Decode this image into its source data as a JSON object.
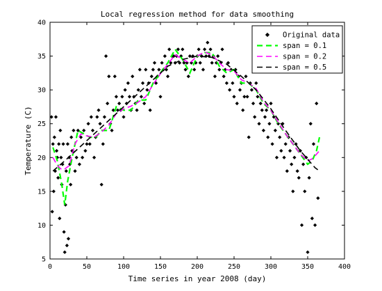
{
  "chart_data": {
    "type": "scatter",
    "title": "Local regression method for data smoothing",
    "xlabel": "Time series in year 2008 (day)",
    "ylabel": "Temperature (C)",
    "xlim": [
      0,
      400
    ],
    "ylim": [
      5,
      40
    ],
    "xticks": [
      "0",
      "50",
      "100",
      "150",
      "200",
      "250",
      "300",
      "350",
      "400"
    ],
    "yticks": [
      "5",
      "10",
      "15",
      "20",
      "25",
      "30",
      "35",
      "40"
    ],
    "grid": false,
    "legend_position": "top-right",
    "series": [
      {
        "name": "Original data",
        "kind": "markers",
        "marker": "diamond",
        "color": "#000000",
        "points": [
          [
            2,
            26
          ],
          [
            3,
            12
          ],
          [
            4,
            22
          ],
          [
            5,
            15
          ],
          [
            6,
            23
          ],
          [
            7,
            18
          ],
          [
            8,
            26
          ],
          [
            9,
            21
          ],
          [
            10,
            20
          ],
          [
            11,
            17
          ],
          [
            12,
            22
          ],
          [
            13,
            11
          ],
          [
            14,
            24
          ],
          [
            15,
            20
          ],
          [
            16,
            16
          ],
          [
            17,
            19
          ],
          [
            18,
            22
          ],
          [
            19,
            9
          ],
          [
            20,
            6
          ],
          [
            21,
            13
          ],
          [
            22,
            18
          ],
          [
            23,
            7
          ],
          [
            24,
            22
          ],
          [
            25,
            8
          ],
          [
            26,
            20
          ],
          [
            27,
            19
          ],
          [
            28,
            16
          ],
          [
            29,
            23
          ],
          [
            30,
            21
          ],
          [
            32,
            24
          ],
          [
            34,
            18
          ],
          [
            36,
            20
          ],
          [
            38,
            24
          ],
          [
            40,
            19
          ],
          [
            42,
            23
          ],
          [
            44,
            20
          ],
          [
            46,
            24
          ],
          [
            48,
            21
          ],
          [
            50,
            22
          ],
          [
            52,
            25
          ],
          [
            54,
            22
          ],
          [
            56,
            26
          ],
          [
            58,
            24
          ],
          [
            60,
            20
          ],
          [
            62,
            23
          ],
          [
            64,
            26
          ],
          [
            66,
            27
          ],
          [
            68,
            25
          ],
          [
            70,
            16
          ],
          [
            72,
            22
          ],
          [
            74,
            26
          ],
          [
            76,
            35
          ],
          [
            78,
            28
          ],
          [
            80,
            32
          ],
          [
            82,
            25
          ],
          [
            84,
            24
          ],
          [
            86,
            27
          ],
          [
            88,
            32
          ],
          [
            90,
            29
          ],
          [
            92,
            27
          ],
          [
            94,
            28
          ],
          [
            96,
            27
          ],
          [
            98,
            29
          ],
          [
            100,
            26
          ],
          [
            102,
            30
          ],
          [
            104,
            28
          ],
          [
            106,
            31
          ],
          [
            108,
            29
          ],
          [
            110,
            27
          ],
          [
            112,
            32
          ],
          [
            114,
            29
          ],
          [
            116,
            28
          ],
          [
            118,
            27
          ],
          [
            120,
            30
          ],
          [
            122,
            33
          ],
          [
            124,
            29
          ],
          [
            126,
            31
          ],
          [
            128,
            28
          ],
          [
            130,
            33
          ],
          [
            132,
            30
          ],
          [
            134,
            31
          ],
          [
            136,
            27
          ],
          [
            138,
            32
          ],
          [
            140,
            33
          ],
          [
            142,
            34
          ],
          [
            144,
            31
          ],
          [
            146,
            32
          ],
          [
            148,
            33
          ],
          [
            150,
            29
          ],
          [
            152,
            34
          ],
          [
            154,
            33
          ],
          [
            156,
            35
          ],
          [
            158,
            33
          ],
          [
            160,
            32
          ],
          [
            162,
            36
          ],
          [
            164,
            34
          ],
          [
            166,
            35
          ],
          [
            168,
            35
          ],
          [
            170,
            34
          ],
          [
            172,
            35
          ],
          [
            174,
            36
          ],
          [
            176,
            34
          ],
          [
            178,
            35
          ],
          [
            180,
            36
          ],
          [
            182,
            34
          ],
          [
            184,
            33
          ],
          [
            186,
            34
          ],
          [
            188,
            32
          ],
          [
            190,
            35
          ],
          [
            192,
            34
          ],
          [
            194,
            35
          ],
          [
            196,
            33
          ],
          [
            198,
            34
          ],
          [
            200,
            35
          ],
          [
            202,
            36
          ],
          [
            204,
            34
          ],
          [
            206,
            35
          ],
          [
            208,
            33
          ],
          [
            210,
            36
          ],
          [
            212,
            35
          ],
          [
            214,
            37
          ],
          [
            216,
            35
          ],
          [
            218,
            36
          ],
          [
            220,
            34
          ],
          [
            222,
            35
          ],
          [
            224,
            32
          ],
          [
            226,
            34
          ],
          [
            228,
            35
          ],
          [
            230,
            33
          ],
          [
            232,
            34
          ],
          [
            234,
            36
          ],
          [
            236,
            32
          ],
          [
            238,
            33
          ],
          [
            240,
            31
          ],
          [
            242,
            34
          ],
          [
            244,
            30
          ],
          [
            246,
            33
          ],
          [
            248,
            31
          ],
          [
            250,
            29
          ],
          [
            252,
            33
          ],
          [
            254,
            28
          ],
          [
            256,
            32
          ],
          [
            258,
            30
          ],
          [
            260,
            31
          ],
          [
            262,
            27
          ],
          [
            264,
            29
          ],
          [
            266,
            32
          ],
          [
            268,
            29
          ],
          [
            270,
            23
          ],
          [
            272,
            31
          ],
          [
            274,
            30
          ],
          [
            276,
            28
          ],
          [
            278,
            26
          ],
          [
            280,
            31
          ],
          [
            282,
            29
          ],
          [
            284,
            25
          ],
          [
            286,
            28
          ],
          [
            288,
            27
          ],
          [
            290,
            24
          ],
          [
            292,
            26
          ],
          [
            294,
            27
          ],
          [
            296,
            23
          ],
          [
            298,
            25
          ],
          [
            300,
            28
          ],
          [
            302,
            22
          ],
          [
            304,
            26
          ],
          [
            306,
            24
          ],
          [
            308,
            20
          ],
          [
            310,
            25
          ],
          [
            312,
            23
          ],
          [
            314,
            21
          ],
          [
            316,
            25
          ],
          [
            318,
            20
          ],
          [
            320,
            22
          ],
          [
            322,
            18
          ],
          [
            324,
            23
          ],
          [
            326,
            21
          ],
          [
            328,
            19
          ],
          [
            330,
            15
          ],
          [
            332,
            20
          ],
          [
            334,
            22
          ],
          [
            336,
            18
          ],
          [
            338,
            17
          ],
          [
            340,
            21
          ],
          [
            342,
            10
          ],
          [
            344,
            19
          ],
          [
            346,
            15
          ],
          [
            348,
            20
          ],
          [
            350,
            6
          ],
          [
            352,
            17
          ],
          [
            354,
            25
          ],
          [
            356,
            11
          ],
          [
            358,
            22
          ],
          [
            360,
            10
          ],
          [
            362,
            28
          ],
          [
            364,
            14
          ]
        ]
      },
      {
        "name": "span = 0.1",
        "kind": "line",
        "color": "#00ff00",
        "dash": "dashed",
        "x": [
          4,
          10,
          16,
          20,
          24,
          30,
          38,
          46,
          54,
          62,
          70,
          80,
          90,
          100,
          110,
          120,
          130,
          140,
          150,
          160,
          170,
          180,
          190,
          200,
          210,
          220,
          230,
          240,
          250,
          260,
          270,
          280,
          290,
          300,
          310,
          320,
          330,
          340,
          350,
          356,
          362,
          366
        ],
        "y": [
          21.5,
          19.5,
          16,
          13,
          16.5,
          20,
          24,
          23.5,
          23,
          23,
          24,
          24,
          27.5,
          27,
          27,
          28.5,
          28.5,
          31,
          32.5,
          34,
          36,
          34.5,
          32.5,
          35,
          35.5,
          35.5,
          33.5,
          32.5,
          33,
          31,
          31,
          30,
          28,
          27,
          25,
          23.5,
          22,
          20.5,
          19,
          19.5,
          21,
          23
        ]
      },
      {
        "name": "span = 0.2",
        "kind": "line",
        "color": "#ff00ff",
        "dash": "dashed",
        "x": [
          4,
          10,
          16,
          20,
          26,
          34,
          42,
          50,
          60,
          70,
          80,
          90,
          100,
          110,
          120,
          130,
          140,
          150,
          160,
          170,
          180,
          190,
          200,
          210,
          220,
          230,
          240,
          250,
          260,
          270,
          280,
          290,
          300,
          310,
          320,
          330,
          340,
          350,
          356,
          362,
          366
        ],
        "y": [
          20,
          18.8,
          18.2,
          18.3,
          18.8,
          22,
          23.5,
          23.2,
          23,
          23.8,
          24.8,
          26.5,
          27.2,
          27.6,
          28.2,
          29,
          30.8,
          32.4,
          33.8,
          35.2,
          34.5,
          34,
          35,
          35.6,
          35.2,
          34,
          33,
          32.8,
          31.5,
          31,
          30.2,
          28.2,
          27,
          25.2,
          23.5,
          22,
          20.5,
          19.5,
          19.8,
          20.5,
          21
        ]
      },
      {
        "name": "span = 0.5",
        "kind": "line",
        "color": "#000000",
        "dash": "dashed",
        "x": [
          4,
          20,
          40,
          60,
          80,
          100,
          120,
          140,
          160,
          180,
          200,
          220,
          240,
          260,
          280,
          300,
          320,
          340,
          360,
          366
        ],
        "y": [
          18,
          19.5,
          21.5,
          23.5,
          25.5,
          27.5,
          29.5,
          31.5,
          33.5,
          34.5,
          35,
          34.8,
          33.8,
          32,
          30,
          27.2,
          24,
          21,
          18.5,
          18
        ]
      }
    ]
  }
}
